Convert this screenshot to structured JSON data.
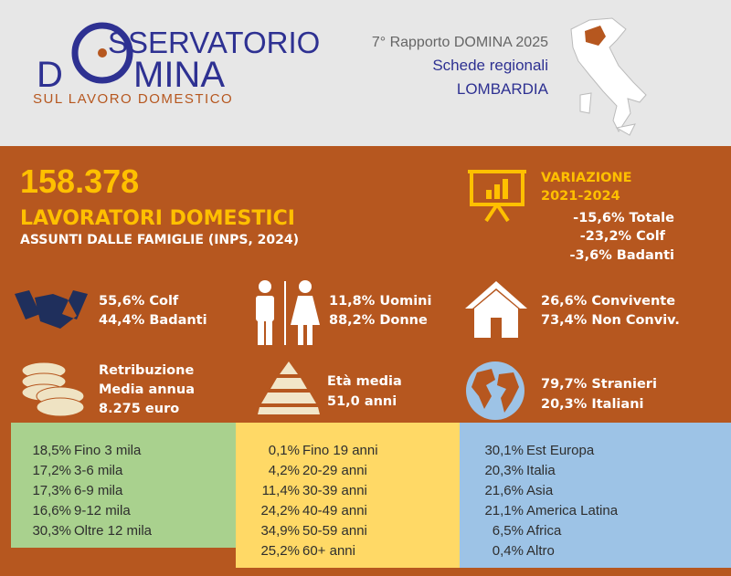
{
  "header": {
    "logo_top": "SSERVATORIO",
    "logo_left": "D",
    "logo_right": "MINA",
    "logo_sub": "SUL LAVORO DOMESTICO",
    "report": "7° Rapporto DOMINA 2025",
    "subtitle": "Schede regionali",
    "region": "LOMBARDIA"
  },
  "headline": {
    "number": "158.378",
    "title": "LAVORATORI DOMESTICI",
    "subtitle": "ASSUNTI DALLE FAMIGLIE (INPS, 2024)"
  },
  "variation": {
    "title": "VARIAZIONE",
    "period": "2021-2024",
    "lines": [
      "-15,6% Totale",
      "-23,2% Colf",
      "-3,6% Badanti"
    ]
  },
  "stats": {
    "type": [
      "55,6% Colf",
      "44,4% Badanti"
    ],
    "gender": [
      "11,8% Uomini",
      "88,2% Donne"
    ],
    "residence": [
      "26,6% Convivente",
      "73,4% Non Conviv."
    ],
    "salary": [
      "Retribuzione",
      "Media annua",
      "8.275 euro"
    ],
    "age": [
      "Età media",
      "51,0 anni"
    ],
    "origin": [
      "79,7% Stranieri",
      "20,3% Italiani"
    ]
  },
  "boxes": {
    "salary": [
      [
        "18,5%",
        "Fino 3 mila"
      ],
      [
        "17,2%",
        "3-6 mila"
      ],
      [
        "17,3%",
        "6-9 mila"
      ],
      [
        "16,6%",
        "9-12 mila"
      ],
      [
        "30,3%",
        "Oltre 12 mila"
      ]
    ],
    "age": [
      [
        "0,1%",
        "Fino 19 anni"
      ],
      [
        "4,2%",
        "20-29 anni"
      ],
      [
        "11,4%",
        "30-39 anni"
      ],
      [
        "24,2%",
        "40-49 anni"
      ],
      [
        "34,9%",
        "50-59 anni"
      ],
      [
        "25,2%",
        "60+ anni"
      ]
    ],
    "origin": [
      [
        "30,1%",
        "Est Europa"
      ],
      [
        "20,3%",
        "Italia"
      ],
      [
        "21,6%",
        "Asia"
      ],
      [
        "21,1%",
        "America Latina"
      ],
      [
        "6,5%",
        "Africa"
      ],
      [
        "0,4%",
        "Altro"
      ]
    ]
  }
}
